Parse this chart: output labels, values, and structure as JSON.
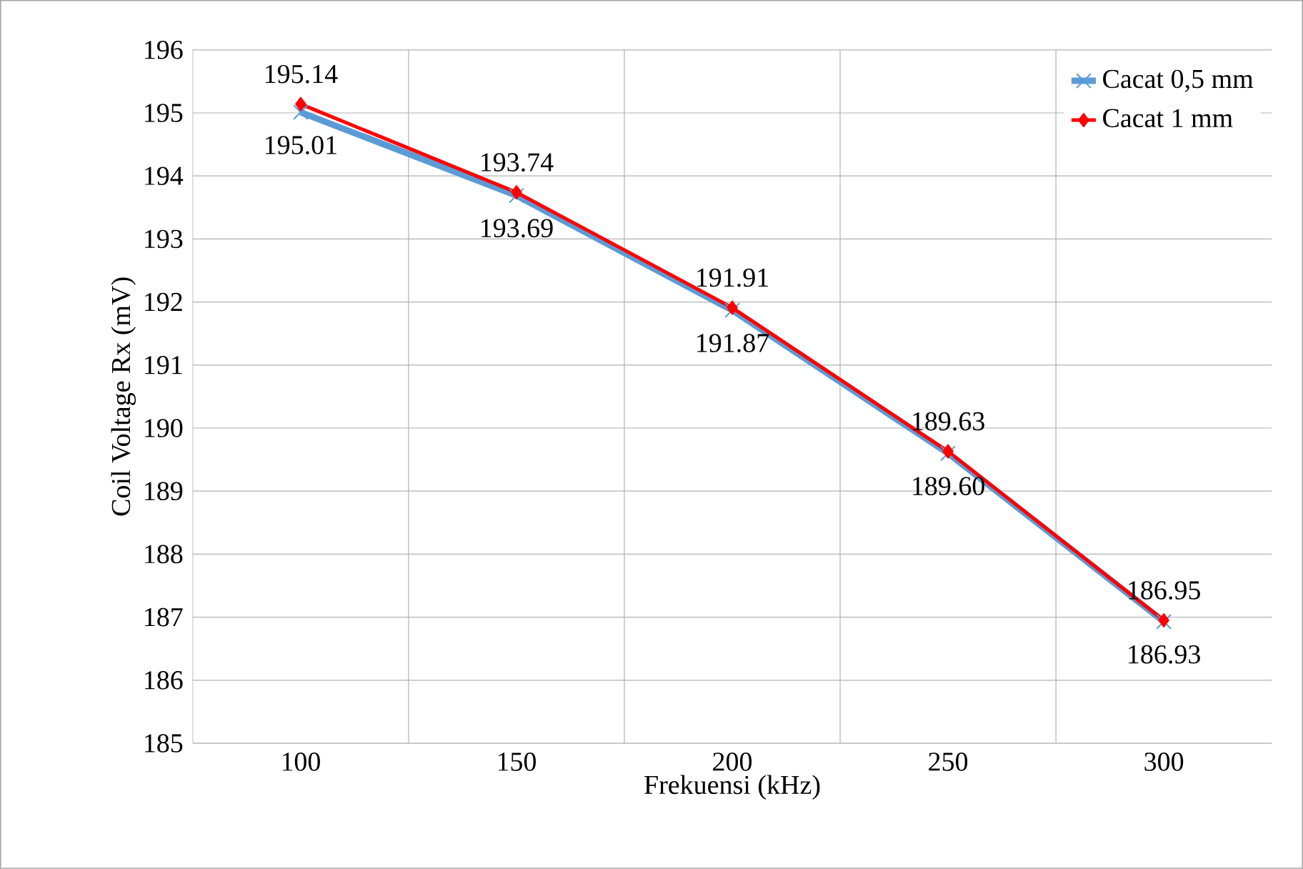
{
  "chart_data": {
    "type": "line",
    "xlabel": "Frekuensi (kHz)",
    "ylabel": "Coil Voltage Rx (mV)",
    "categories": [
      "100",
      "150",
      "200",
      "250",
      "300"
    ],
    "series": [
      {
        "name": "Cacat 0,5 mm",
        "color": "#5b9bd5",
        "marker": "cross",
        "values": [
          195.01,
          193.69,
          191.87,
          189.6,
          186.93
        ],
        "value_labels": [
          "195.01",
          "193.69",
          "191.87",
          "189.60",
          "186.93"
        ]
      },
      {
        "name": "Cacat 1 mm",
        "color": "#ff0000",
        "marker": "diamond",
        "values": [
          195.14,
          193.74,
          191.91,
          189.63,
          186.95
        ],
        "value_labels": [
          "195.14",
          "193.74",
          "191.91",
          "189.63",
          "186.95"
        ]
      }
    ],
    "ylim": [
      185,
      196
    ],
    "yticks": [
      185,
      186,
      187,
      188,
      189,
      190,
      191,
      192,
      193,
      194,
      195,
      196
    ],
    "grid": true,
    "legend": "top right"
  }
}
